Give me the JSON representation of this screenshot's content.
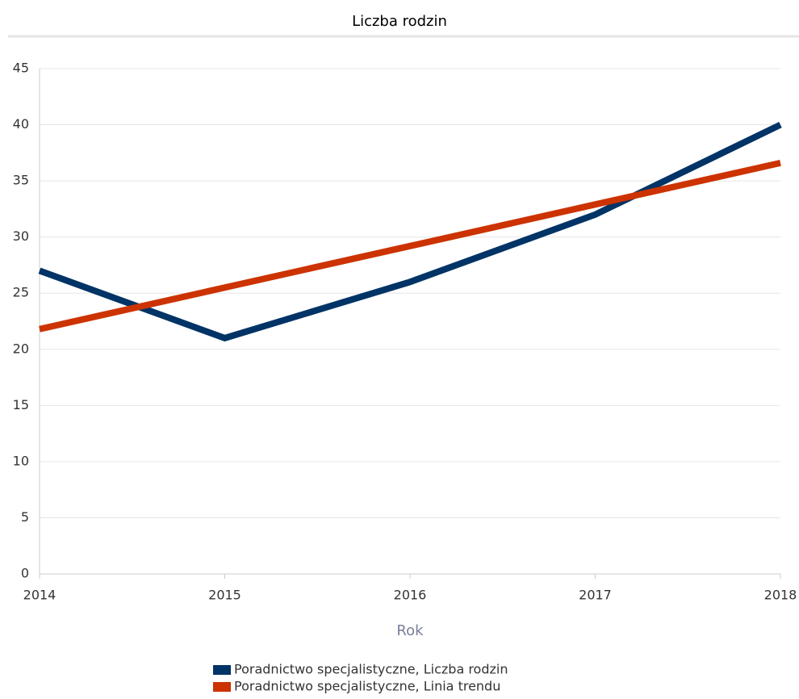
{
  "chart_data": {
    "type": "line",
    "title": "Liczba rodzin",
    "xlabel": "Rok",
    "x": [
      2014,
      2015,
      2016,
      2017,
      2018
    ],
    "series": [
      {
        "name": "Poradnictwo specjalistyczne, Liczba rodzin",
        "color": "#003366",
        "values": [
          27,
          21,
          26,
          32,
          40
        ]
      },
      {
        "name": "Poradnictwo specjalistyczne, Linia trendu",
        "color": "#cc3300",
        "values": [
          21.8,
          25.5,
          29.2,
          32.9,
          36.6
        ]
      }
    ],
    "xlim": [
      2014,
      2018
    ],
    "xticks": [
      2014,
      2015,
      2016,
      2017,
      2018
    ],
    "ylim": [
      0,
      45
    ],
    "yticks": [
      0,
      5,
      10,
      15,
      20,
      25,
      30,
      35,
      40,
      45
    ],
    "grid": true
  }
}
